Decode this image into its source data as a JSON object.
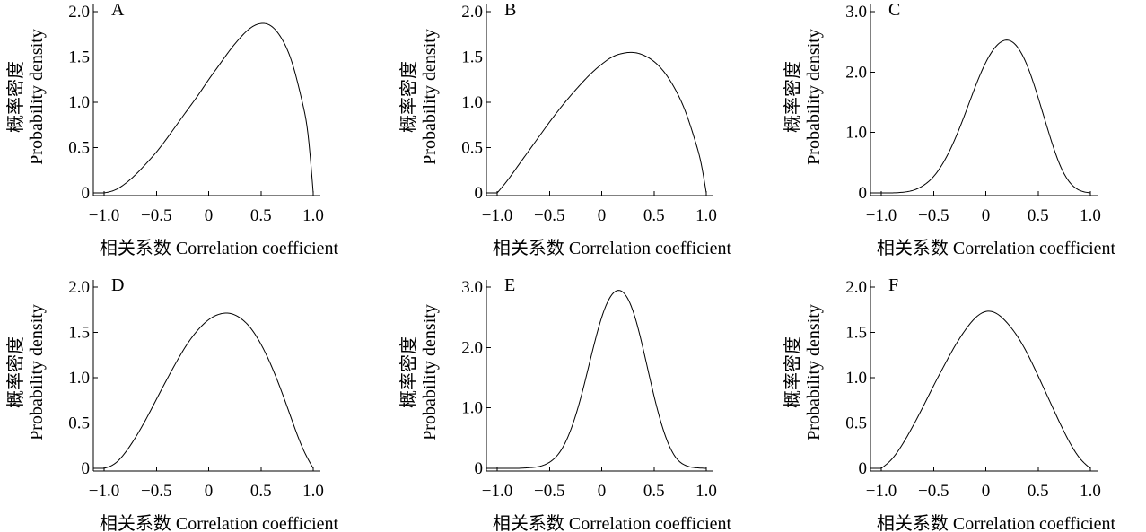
{
  "chart_data": [
    {
      "type": "line",
      "panel": "A",
      "xlabel": "相关系数 Correlation coefficient",
      "ylabel": [
        "概率密度",
        "Probability density"
      ],
      "xlim": [
        -1.0,
        1.0
      ],
      "ylim": [
        0,
        2.0
      ],
      "xticks": [
        "−1.0",
        "−0.5",
        "0",
        "0.5",
        "1.0"
      ],
      "xtick_values": [
        -1.0,
        -0.5,
        0,
        0.5,
        1.0
      ],
      "yticks": [
        "0",
        "0.5",
        "1.0",
        "1.5",
        "2.0"
      ],
      "ytick_values": [
        0,
        0.5,
        1.0,
        1.5,
        2.0
      ],
      "series": [
        {
          "x": [
            -1.0,
            -0.9,
            -0.8,
            -0.7,
            -0.6,
            -0.5,
            -0.4,
            -0.3,
            -0.2,
            -0.1,
            0.0,
            0.1,
            0.2,
            0.3,
            0.4,
            0.5,
            0.6,
            0.7,
            0.8,
            0.9,
            0.95,
            1.0
          ],
          "values": [
            0.0,
            0.03,
            0.1,
            0.2,
            0.32,
            0.45,
            0.6,
            0.76,
            0.92,
            1.08,
            1.25,
            1.41,
            1.57,
            1.71,
            1.82,
            1.87,
            1.84,
            1.7,
            1.43,
            0.98,
            0.65,
            0.0
          ]
        }
      ]
    },
    {
      "type": "line",
      "panel": "B",
      "xlabel": "相关系数 Correlation coefficient",
      "ylabel": [
        "概率密度",
        "Probability density"
      ],
      "xlim": [
        -1.0,
        1.0
      ],
      "ylim": [
        0,
        2.0
      ],
      "xticks": [
        "−1.0",
        "−0.5",
        "0",
        "0.5",
        "1.0"
      ],
      "xtick_values": [
        -1.0,
        -0.5,
        0,
        0.5,
        1.0
      ],
      "yticks": [
        "0",
        "0.5",
        "1.0",
        "1.5",
        "2.0"
      ],
      "ytick_values": [
        0,
        0.5,
        1.0,
        1.5,
        2.0
      ],
      "series": [
        {
          "x": [
            -1.0,
            -0.9,
            -0.8,
            -0.7,
            -0.6,
            -0.5,
            -0.4,
            -0.3,
            -0.2,
            -0.1,
            0.0,
            0.1,
            0.2,
            0.3,
            0.4,
            0.5,
            0.6,
            0.7,
            0.8,
            0.9,
            0.95,
            1.0
          ],
          "values": [
            0.0,
            0.14,
            0.3,
            0.46,
            0.62,
            0.78,
            0.93,
            1.07,
            1.2,
            1.32,
            1.42,
            1.5,
            1.54,
            1.55,
            1.52,
            1.45,
            1.33,
            1.15,
            0.9,
            0.55,
            0.33,
            0.0
          ]
        }
      ]
    },
    {
      "type": "line",
      "panel": "C",
      "xlabel": "相关系数 Correlation coefficient",
      "ylabel": [
        "概率密度",
        "Probability density"
      ],
      "xlim": [
        -1.0,
        1.0
      ],
      "ylim": [
        0,
        3.0
      ],
      "xticks": [
        "−1.0",
        "−0.5",
        "0",
        "0.5",
        "1.0"
      ],
      "xtick_values": [
        -1.0,
        -0.5,
        0,
        0.5,
        1.0
      ],
      "yticks": [
        "0",
        "1.0",
        "2.0",
        "3.0"
      ],
      "ytick_values": [
        0,
        1.0,
        2.0,
        3.0
      ],
      "series": [
        {
          "x": [
            -1.0,
            -0.9,
            -0.8,
            -0.7,
            -0.6,
            -0.5,
            -0.4,
            -0.3,
            -0.2,
            -0.1,
            0.0,
            0.1,
            0.2,
            0.3,
            0.4,
            0.5,
            0.6,
            0.7,
            0.8,
            0.9,
            1.0
          ],
          "values": [
            0.0,
            0.0,
            0.01,
            0.04,
            0.12,
            0.27,
            0.52,
            0.87,
            1.3,
            1.76,
            2.16,
            2.43,
            2.53,
            2.42,
            2.09,
            1.58,
            1.01,
            0.5,
            0.18,
            0.04,
            0.0
          ]
        }
      ]
    },
    {
      "type": "line",
      "panel": "D",
      "xlabel": "相关系数 Correlation coefficient",
      "ylabel": [
        "概率密度",
        "Probability density"
      ],
      "xlim": [
        -1.0,
        1.0
      ],
      "ylim": [
        0,
        2.0
      ],
      "xticks": [
        "−1.0",
        "−0.5",
        "0",
        "0.5",
        "1.0"
      ],
      "xtick_values": [
        -1.0,
        -0.5,
        0,
        0.5,
        1.0
      ],
      "yticks": [
        "0",
        "0.5",
        "1.0",
        "1.5",
        "2.0"
      ],
      "ytick_values": [
        0,
        0.5,
        1.0,
        1.5,
        2.0
      ],
      "series": [
        {
          "x": [
            -1.0,
            -0.9,
            -0.8,
            -0.7,
            -0.6,
            -0.5,
            -0.4,
            -0.3,
            -0.2,
            -0.1,
            0.0,
            0.1,
            0.2,
            0.3,
            0.4,
            0.5,
            0.6,
            0.7,
            0.8,
            0.9,
            1.0
          ],
          "values": [
            0.0,
            0.05,
            0.17,
            0.34,
            0.54,
            0.76,
            0.98,
            1.19,
            1.38,
            1.53,
            1.64,
            1.7,
            1.71,
            1.66,
            1.55,
            1.37,
            1.13,
            0.84,
            0.52,
            0.22,
            0.0
          ]
        }
      ]
    },
    {
      "type": "line",
      "panel": "E",
      "xlabel": "相关系数 Correlation coefficient",
      "ylabel": [
        "概率密度",
        "Probability density"
      ],
      "xlim": [
        -1.0,
        1.0
      ],
      "ylim": [
        0,
        3.0
      ],
      "xticks": [
        "−1.0",
        "−0.5",
        "0",
        "0.5",
        "1.0"
      ],
      "xtick_values": [
        -1.0,
        -0.5,
        0,
        0.5,
        1.0
      ],
      "yticks": [
        "0",
        "1.0",
        "2.0",
        "3.0"
      ],
      "ytick_values": [
        0,
        1.0,
        2.0,
        3.0
      ],
      "series": [
        {
          "x": [
            -1.0,
            -0.9,
            -0.8,
            -0.7,
            -0.6,
            -0.5,
            -0.4,
            -0.3,
            -0.2,
            -0.1,
            0.0,
            0.1,
            0.2,
            0.3,
            0.4,
            0.5,
            0.6,
            0.7,
            0.8,
            0.9,
            1.0
          ],
          "values": [
            0.0,
            0.0,
            0.0,
            0.01,
            0.03,
            0.1,
            0.27,
            0.62,
            1.17,
            1.86,
            2.5,
            2.88,
            2.92,
            2.6,
            1.95,
            1.2,
            0.58,
            0.2,
            0.05,
            0.01,
            0.0
          ]
        }
      ]
    },
    {
      "type": "line",
      "panel": "F",
      "xlabel": "相关系数 Correlation coefficient",
      "ylabel": [
        "概率密度",
        "Probability density"
      ],
      "xlim": [
        -1.0,
        1.0
      ],
      "ylim": [
        0,
        2.0
      ],
      "xticks": [
        "−1.0",
        "−0.5",
        "0",
        "0.5",
        "1.0"
      ],
      "xtick_values": [
        -1.0,
        -0.5,
        0,
        0.5,
        1.0
      ],
      "yticks": [
        "0",
        "0.5",
        "1.0",
        "1.5",
        "2.0"
      ],
      "ytick_values": [
        0,
        0.5,
        1.0,
        1.5,
        2.0
      ],
      "series": [
        {
          "x": [
            -1.0,
            -0.9,
            -0.8,
            -0.7,
            -0.6,
            -0.5,
            -0.4,
            -0.3,
            -0.2,
            -0.1,
            0.0,
            0.1,
            0.2,
            0.3,
            0.4,
            0.5,
            0.6,
            0.7,
            0.8,
            0.9,
            1.0
          ],
          "values": [
            0.0,
            0.1,
            0.26,
            0.46,
            0.68,
            0.91,
            1.13,
            1.34,
            1.52,
            1.66,
            1.73,
            1.71,
            1.61,
            1.46,
            1.26,
            1.02,
            0.77,
            0.52,
            0.29,
            0.11,
            0.0
          ]
        }
      ]
    }
  ]
}
